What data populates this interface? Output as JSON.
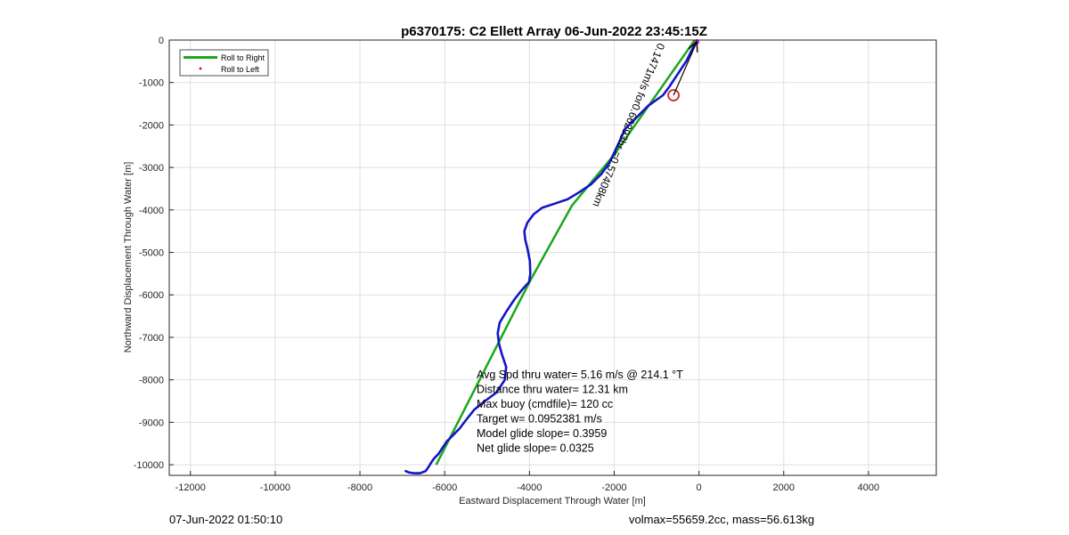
{
  "chart_data": {
    "type": "line",
    "title": "p6370175: C2 Ellett Array 06-Jun-2022 23:45:15Z",
    "xlabel": "Eastward Displacement Through Water [m]",
    "ylabel": "Northward Displacement Through Water [m]",
    "xlim": [
      -12500,
      5600
    ],
    "ylim": [
      -10250,
      0
    ],
    "xticks": [
      -12000,
      -10000,
      -8000,
      -6000,
      -4000,
      -2000,
      0,
      2000,
      4000
    ],
    "yticks": [
      0,
      -1000,
      -2000,
      -3000,
      -4000,
      -5000,
      -6000,
      -7000,
      -8000,
      -9000,
      -10000
    ],
    "grid": true,
    "legend": {
      "placement": "top-left",
      "entries": [
        "Roll to Right",
        "Roll to Left"
      ]
    },
    "colors": {
      "roll_right": "#1aa81a",
      "roll_left": "#e00000",
      "track": "#1515c8",
      "marker": "#cc2a2a",
      "start": "#cc33cc",
      "arrow": "#000000"
    },
    "series": [
      {
        "name": "Roll to Right",
        "x": [
          -100,
          -2000,
          -3000,
          -4000,
          -6200
        ],
        "y": [
          0,
          -2700,
          -3900,
          -5700,
          -10000
        ]
      },
      {
        "x": [
          -50,
          -150,
          -300,
          -500,
          -700,
          -850,
          -1200,
          -1450,
          -1750,
          -1880,
          -2000,
          -2120,
          -2300,
          -2550,
          -2850,
          -3100,
          -3400,
          -3700,
          -3900,
          -4050,
          -4120,
          -4100,
          -4050,
          -3990,
          -3980,
          -4010,
          -4150,
          -4350,
          -4550,
          -4700,
          -4750,
          -4720,
          -4650,
          -4550,
          -4580,
          -4780,
          -5050,
          -5300,
          -5500,
          -5650,
          -5800,
          -5950,
          -6050,
          -6150,
          -6250,
          -6320,
          -6380,
          -6450,
          -6580,
          -6720,
          -6850,
          -6920
        ],
        "y": [
          -10,
          -200,
          -500,
          -800,
          -1100,
          -1300,
          -1550,
          -1800,
          -2100,
          -2400,
          -2650,
          -2900,
          -3150,
          -3400,
          -3600,
          -3750,
          -3850,
          -3950,
          -4100,
          -4300,
          -4500,
          -4700,
          -4900,
          -5200,
          -5500,
          -5700,
          -5850,
          -6100,
          -6400,
          -6650,
          -6900,
          -7150,
          -7400,
          -7700,
          -8000,
          -8300,
          -8500,
          -8700,
          -8950,
          -9150,
          -9300,
          -9450,
          -9600,
          -9750,
          -9850,
          -9950,
          -10050,
          -10150,
          -10200,
          -10200,
          -10180,
          -10150
        ]
      }
    ],
    "markers": [
      {
        "type": "circle",
        "x": -600,
        "y": -1300
      },
      {
        "type": "start",
        "x": -50,
        "y": -40
      }
    ],
    "arrow_label": "0.1471m/s for0.66293hr =0.57408km",
    "annotations": [
      "Avg Spd thru water=  5.16 m/s @ 214.1 °T",
      "Distance thru water= 12.31 km",
      "Max buoy (cmdfile)= 120 cc",
      "Target w= 0.0952381 m/s",
      "Model glide slope= 0.3959",
      "Net glide slope= 0.0325"
    ]
  },
  "footer": {
    "left": "07-Jun-2022 01:50:10",
    "right": "volmax=55659.2cc, mass=56.613kg"
  }
}
